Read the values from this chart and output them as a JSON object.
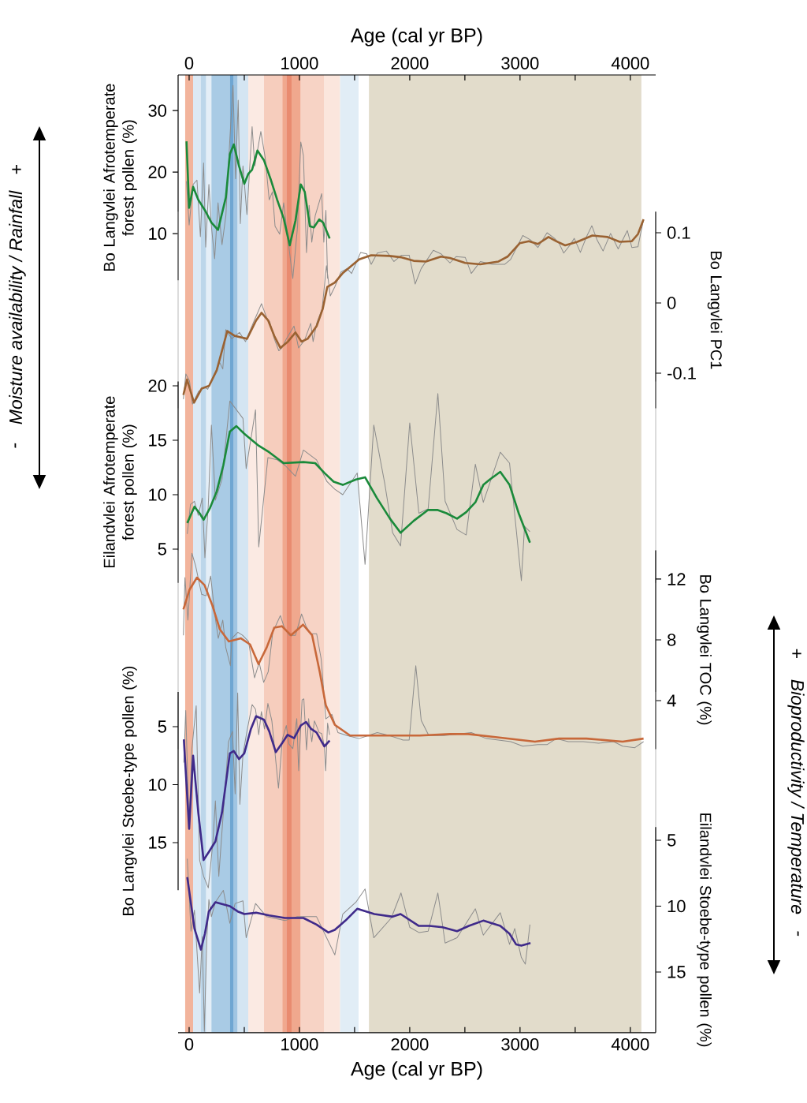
{
  "chart_data": [
    {
      "type": "line",
      "xlabel": "Age (cal yr BP)",
      "ylabel": "Bo Langvlei Afrotemperate forest pollen (%)",
      "xlim": [
        -100,
        4230
      ],
      "xticks": [
        0,
        {
          "value": 500,
          "label": null
        },
        1000,
        {
          "value": 1500,
          "label": null
        },
        2000,
        {
          "value": 2500,
          "label": null
        },
        3000,
        {
          "value": 3500,
          "label": null
        },
        4000
      ],
      "ylim": [
        2.4,
        35.8
      ],
      "yticks": [
        10,
        20,
        30
      ],
      "annotations": [
        "-",
        "Moisture availability / Rainfall",
        "+"
      ],
      "bands": [
        {
          "axis": "x",
          "from": -36,
          "to": 36,
          "color": "#f2b49c"
        },
        {
          "axis": "x",
          "from": 36,
          "to": 107,
          "color": "#dce9f4"
        },
        {
          "axis": "x",
          "from": 107,
          "to": 155,
          "color": "#bcd6ea"
        },
        {
          "axis": "x",
          "from": 155,
          "to": 202,
          "color": "#e4eef7"
        },
        {
          "axis": "x",
          "from": 202,
          "to": 369,
          "color": "#a9cbe5"
        },
        {
          "axis": "x",
          "from": 369,
          "to": 405,
          "color": "#6fa6d2"
        },
        {
          "axis": "x",
          "from": 405,
          "to": 440,
          "color": "#a0c5e2"
        },
        {
          "axis": "x",
          "from": 440,
          "to": 536,
          "color": "#d4e5f2"
        },
        {
          "axis": "x",
          "from": 536,
          "to": 679,
          "color": "#fbeae3"
        },
        {
          "axis": "x",
          "from": 679,
          "to": 845,
          "color": "#f6cdbd"
        },
        {
          "axis": "x",
          "from": 845,
          "to": 881,
          "color": "#f0a88e"
        },
        {
          "axis": "x",
          "from": 881,
          "to": 929,
          "color": "#e98b70"
        },
        {
          "axis": "x",
          "from": 929,
          "to": 1012,
          "color": "#f0a88e"
        },
        {
          "axis": "x",
          "from": 1012,
          "to": 1226,
          "color": "#f7d3c5"
        },
        {
          "axis": "x",
          "from": 1226,
          "to": 1369,
          "color": "#fbe6dd"
        },
        {
          "axis": "x",
          "from": 1369,
          "to": 1536,
          "color": "#e1edf6"
        },
        {
          "axis": "x",
          "from": 1630,
          "to": 4100,
          "color": "#e2dccb"
        }
      ],
      "series": [
        {
          "color": "#8c8c8c",
          "x": [
            -24,
            0,
            36,
            71,
            102,
            131,
            150,
            179,
            202,
            231,
            262,
            298,
            333,
            369,
            398,
            421,
            445,
            464,
            488,
            524,
            571,
            595,
            650,
            690,
            726,
            755,
            779,
            821,
            857,
            893,
            940,
            983,
            1012,
            1036,
            1064,
            1088,
            1112,
            1143,
            1202,
            1221,
            1240,
            1255
          ],
          "values": [
            18.5,
            11.4,
            18.0,
            18.7,
            9.5,
            21.5,
            7.8,
            18.0,
            11.2,
            5.9,
            15.0,
            8.2,
            12.9,
            25.3,
            34.1,
            18.9,
            31.7,
            11.6,
            21.0,
            13.1,
            27.4,
            21.0,
            26.6,
            22.3,
            15.5,
            16.8,
            11.2,
            9.9,
            15.0,
            9.5,
            2.7,
            11.2,
            24.9,
            22.7,
            6.9,
            14.6,
            8.6,
            12.9,
            16.5,
            8.6,
            13.8,
            2.7
          ]
        },
        {
          "color": "#1a8a3a",
          "x": [
            -24,
            0,
            36,
            83,
            143,
            202,
            262,
            333,
            369,
            405,
            452,
            500,
            536,
            571,
            619,
            679,
            738,
            798,
            857,
            912,
            964,
            1012,
            1048,
            1095,
            1131,
            1179,
            1214,
            1274
          ],
          "values": [
            25.0,
            14.2,
            17.6,
            15.5,
            13.8,
            11.8,
            10.6,
            15.9,
            22.9,
            24.5,
            21.0,
            18.1,
            19.7,
            20.4,
            23.5,
            21.9,
            18.9,
            15.5,
            12.5,
            8.1,
            12.1,
            18.0,
            16.8,
            11.2,
            11.0,
            12.3,
            11.8,
            9.2
          ]
        }
      ]
    },
    {
      "type": "line",
      "ylabel": "Bo Langvlei PC1",
      "tick_labels": "y",
      "xlim": [
        -100,
        4230
      ],
      "ylim": [
        -0.15,
        0.13
      ],
      "yticks": [
        -0.1,
        0,
        0.1
      ],
      "series": [
        {
          "color": "#8c8c8c",
          "x": [
            -52,
            -30,
            3,
            30,
            85,
            140,
            168,
            223,
            278,
            305,
            332,
            387,
            456,
            511,
            580,
            656,
            703,
            731,
            772,
            813,
            841,
            882,
            951,
            992,
            1047,
            1102,
            1124,
            1156,
            1206,
            1245,
            1280,
            1321,
            1376,
            1431,
            1473,
            1555,
            1610,
            1651,
            1706,
            1788,
            1857,
            1926,
            1995,
            2049,
            2104,
            2214,
            2283,
            2365,
            2420,
            2503,
            2558,
            2640,
            2750,
            2860,
            2915,
            3025,
            3093,
            3162,
            3245,
            3313,
            3354,
            3396,
            3451,
            3492,
            3547,
            3602,
            3651,
            3698,
            3753,
            3821,
            3890,
            3973,
            4014,
            4069,
            4120
          ],
          "values": [
            -0.137,
            -0.101,
            -0.111,
            -0.144,
            -0.126,
            -0.12,
            -0.123,
            -0.103,
            -0.085,
            -0.094,
            -0.038,
            -0.051,
            -0.042,
            -0.055,
            -0.029,
            -0.001,
            -0.021,
            -0.027,
            -0.051,
            -0.068,
            -0.064,
            -0.051,
            -0.033,
            -0.064,
            -0.053,
            -0.029,
            -0.055,
            -0.029,
            -0.008,
            0.053,
            0.01,
            0.023,
            0.044,
            0.049,
            0.042,
            0.072,
            0.07,
            0.055,
            0.071,
            0.074,
            0.059,
            0.068,
            0.068,
            0.027,
            0.049,
            0.075,
            0.07,
            0.057,
            0.066,
            0.065,
            0.042,
            0.059,
            0.055,
            0.055,
            0.062,
            0.096,
            0.09,
            0.079,
            0.1,
            0.092,
            0.085,
            0.071,
            0.082,
            0.092,
            0.072,
            0.094,
            0.11,
            0.09,
            0.074,
            0.099,
            0.077,
            0.103,
            0.079,
            0.08,
            0.119
          ]
        },
        {
          "color": "#9a6232",
          "x": [
            -52,
            -19,
            44,
            113,
            181,
            250,
            305,
            346,
            415,
            525,
            607,
            656,
            717,
            772,
            827,
            896,
            964,
            1019,
            1074,
            1156,
            1212,
            1253,
            1321,
            1390,
            1473,
            1541,
            1651,
            1816,
            1926,
            2036,
            2146,
            2283,
            2365,
            2503,
            2640,
            2805,
            2887,
            2997,
            3080,
            3162,
            3258,
            3327,
            3409,
            3519,
            3656,
            3794,
            3904,
            4014,
            4069,
            4120
          ],
          "values": [
            -0.131,
            -0.109,
            -0.142,
            -0.122,
            -0.118,
            -0.096,
            -0.064,
            -0.04,
            -0.047,
            -0.051,
            -0.025,
            -0.014,
            -0.025,
            -0.047,
            -0.064,
            -0.055,
            -0.042,
            -0.055,
            -0.051,
            -0.033,
            -0.008,
            0.023,
            0.029,
            0.042,
            0.053,
            0.062,
            0.068,
            0.067,
            0.065,
            0.06,
            0.059,
            0.066,
            0.064,
            0.057,
            0.055,
            0.059,
            0.066,
            0.085,
            0.088,
            0.084,
            0.094,
            0.088,
            0.082,
            0.087,
            0.096,
            0.094,
            0.087,
            0.088,
            0.098,
            0.119
          ]
        }
      ]
    },
    {
      "type": "line",
      "ylabel": "Eilandvlei Afrotemperate forest pollen (%)",
      "tick_labels": "y",
      "xlim": [
        -100,
        4230
      ],
      "ylim": [
        1.9,
        20.4
      ],
      "yticks": [
        5,
        10,
        15,
        20
      ],
      "series": [
        {
          "color": "#8c8c8c",
          "x": [
            -17,
            12,
            48,
            83,
            119,
            143,
            174,
            202,
            238,
            298,
            369,
            429,
            488,
            517,
            602,
            631,
            714,
            798,
            869,
            964,
            1036,
            1155,
            1250,
            1321,
            1393,
            1524,
            1595,
            1674,
            1774,
            1845,
            1917,
            2000,
            2083,
            2167,
            2255,
            2321,
            2429,
            2512,
            2595,
            2667,
            2821,
            2905,
            3012,
            3041,
            3090
          ],
          "values": [
            6.4,
            9.1,
            9.4,
            8.1,
            9.7,
            4.2,
            9.1,
            16.4,
            9.5,
            11.4,
            18.6,
            17.8,
            17.0,
            12.4,
            17.8,
            5.2,
            13.4,
            13.2,
            12.7,
            11.7,
            14.1,
            13.2,
            11.2,
            10.5,
            10.0,
            12.0,
            3.6,
            16.4,
            11.0,
            6.5,
            5.3,
            16.6,
            8.3,
            8.7,
            19.3,
            9.4,
            6.8,
            6.3,
            12.8,
            9.3,
            13.9,
            12.9,
            2.1,
            7.1,
            6.6
          ]
        },
        {
          "color": "#1a8a3a",
          "x": [
            -17,
            48,
            95,
            131,
            190,
            250,
            310,
            369,
            429,
            500,
            560,
            631,
            726,
            857,
            1036,
            1143,
            1226,
            1310,
            1393,
            1512,
            1595,
            1702,
            1821,
            1917,
            2036,
            2167,
            2250,
            2333,
            2429,
            2512,
            2595,
            2667,
            2726,
            2821,
            2905,
            2988,
            3090
          ],
          "values": [
            7.4,
            8.9,
            8.3,
            7.7,
            8.8,
            10.3,
            12.7,
            15.8,
            16.3,
            15.6,
            15.1,
            14.5,
            13.9,
            12.9,
            13.0,
            12.9,
            12.0,
            11.2,
            10.9,
            11.4,
            11.6,
            9.7,
            7.8,
            6.5,
            7.6,
            8.6,
            8.6,
            8.3,
            7.8,
            8.4,
            9.3,
            10.9,
            11.4,
            12.1,
            10.9,
            8.3,
            5.6
          ]
        }
      ]
    },
    {
      "type": "line",
      "ylabel": "Bo Langvlei TOC (%)",
      "tick_labels": "y",
      "xlim": [
        -100,
        4230
      ],
      "ylim": [
        0.8,
        13.9
      ],
      "yticks": [
        4,
        8,
        12
      ],
      "annotations": [
        "+",
        "Bioproductivity / Temperature",
        "-"
      ],
      "series": [
        {
          "color": "#8c8c8c",
          "x": [
            -52,
            -38,
            -11,
            25,
            58,
            113,
            154,
            195,
            236,
            264,
            305,
            332,
            374,
            387,
            442,
            484,
            538,
            593,
            635,
            676,
            717,
            758,
            827,
            868,
            909,
            964,
            1019,
            1060,
            1102,
            1156,
            1198,
            1239,
            1294,
            1349,
            1431,
            1541,
            1624,
            1706,
            1816,
            1940,
            1995,
            2055,
            2104,
            2173,
            2310,
            2448,
            2558,
            2695,
            2805,
            2915,
            3025,
            3162,
            3245,
            3327,
            3437,
            3574,
            3712,
            3849,
            3931,
            4041,
            4120
          ],
          "values": [
            8.3,
            12.1,
            9.3,
            13.7,
            12.9,
            11.0,
            10.9,
            12.2,
            9.5,
            8.1,
            9.3,
            7.5,
            6.3,
            8.1,
            8.5,
            8.3,
            7.9,
            5.5,
            6.5,
            5.2,
            5.9,
            8.5,
            9.6,
            8.7,
            8.3,
            8.3,
            9.7,
            8.9,
            8.4,
            8.4,
            6.7,
            2.8,
            3.1,
            1.9,
            1.7,
            1.5,
            1.7,
            1.9,
            1.7,
            1.4,
            1.4,
            6.3,
            2.7,
            1.7,
            1.7,
            1.8,
            1.9,
            1.5,
            1.4,
            1.3,
            1.0,
            1.1,
            1.1,
            1.5,
            1.3,
            1.3,
            1.2,
            1.3,
            1.0,
            0.9,
            1.3
          ]
        },
        {
          "color": "#c8683a",
          "x": [
            -52,
            3,
            71,
            140,
            209,
            278,
            360,
            470,
            552,
            629,
            703,
            772,
            841,
            923,
            1033,
            1115,
            1184,
            1239,
            1321,
            1459,
            1816,
            2091,
            2365,
            2530,
            2778,
            3135,
            3354,
            3602,
            3931,
            4120
          ],
          "values": [
            10.0,
            11.3,
            12.1,
            11.6,
            10.3,
            8.7,
            7.9,
            8.1,
            7.7,
            6.4,
            7.5,
            8.8,
            8.9,
            8.3,
            9.0,
            8.3,
            5.9,
            3.7,
            2.4,
            1.7,
            1.7,
            1.7,
            1.8,
            1.8,
            1.6,
            1.3,
            1.5,
            1.5,
            1.3,
            1.5
          ]
        }
      ]
    },
    {
      "type": "line",
      "ylabel": "Bo Langvlei Stoebe-type pollen (%)",
      "tick_labels": "y",
      "xlim": [
        -100,
        4230
      ],
      "ylim": [
        19.1,
        2.0
      ],
      "yticks": [
        5,
        10,
        15
      ],
      "series": [
        {
          "color": "#8c8c8c",
          "x": [
            -48,
            -31,
            0,
            24,
            64,
            95,
            131,
            174,
            214,
            238,
            269,
            310,
            357,
            393,
            417,
            440,
            460,
            488,
            524,
            571,
            602,
            631,
            655,
            683,
            714,
            750,
            810,
            845,
            881,
            905,
            940,
            976,
            993,
            1024,
            1040,
            1064,
            1083,
            1112,
            1136,
            1179,
            1202,
            1226,
            1238,
            1255,
            1274
          ],
          "values": [
            8.1,
            3.6,
            13.8,
            7.0,
            3.2,
            16.5,
            17.9,
            18.9,
            15.1,
            11.4,
            17.9,
            12.4,
            6.3,
            5.4,
            10.8,
            2.1,
            11.7,
            7.4,
            5.4,
            3.1,
            3.5,
            5.7,
            3.7,
            5.2,
            3.0,
            4.5,
            10.3,
            6.1,
            4.9,
            6.5,
            6.9,
            4.3,
            8.8,
            2.7,
            2.6,
            7.0,
            4.3,
            6.3,
            4.5,
            5.5,
            5.6,
            6.7,
            8.8,
            4.7,
            5.7
          ]
        },
        {
          "color": "#3f2a8a",
          "x": [
            -48,
            0,
            36,
            83,
            131,
            179,
            238,
            298,
            369,
            405,
            452,
            500,
            560,
            607,
            679,
            726,
            786,
            845,
            893,
            952,
            1012,
            1060,
            1107,
            1155,
            1190,
            1226,
            1274
          ],
          "values": [
            6.1,
            13.8,
            7.5,
            12.4,
            16.5,
            15.8,
            14.9,
            12.4,
            7.3,
            7.1,
            7.8,
            7.3,
            5.2,
            4.1,
            4.4,
            5.4,
            7.2,
            6.4,
            5.7,
            6.0,
            4.9,
            4.6,
            5.2,
            5.5,
            6.1,
            6.7,
            6.2
          ]
        }
      ]
    },
    {
      "type": "line",
      "xlabel": "Age (cal yr BP)",
      "ylabel": "Eilandvlei Stoebe-type pollen (%)",
      "xlim": [
        -100,
        4230
      ],
      "xticks": [
        0,
        {
          "value": 500,
          "label": null
        },
        1000,
        {
          "value": 1500,
          "label": null
        },
        2000,
        {
          "value": 2500,
          "label": null
        },
        3000,
        {
          "value": 3500,
          "label": null
        },
        4000
      ],
      "ylim": [
        19.6,
        4.0
      ],
      "yticks": [
        5,
        10,
        15
      ],
      "series": [
        {
          "color": "#8c8c8c",
          "x": [
            -17,
            17,
            48,
            95,
            119,
            138,
            160,
            179,
            202,
            238,
            310,
            369,
            417,
            488,
            517,
            602,
            702,
            869,
            976,
            1155,
            1321,
            1393,
            1512,
            1595,
            1674,
            1833,
            1921,
            2000,
            2083,
            2167,
            2255,
            2321,
            2429,
            2595,
            2667,
            2821,
            2905,
            2952,
            3012,
            3048,
            3090
          ],
          "values": [
            6.4,
            11.9,
            10.3,
            16.6,
            12.3,
            19.5,
            12.5,
            9.5,
            10.8,
            9.7,
            8.8,
            11.3,
            9.8,
            9.6,
            12.4,
            9.8,
            10.8,
            11.1,
            10.8,
            10.8,
            13.7,
            10.6,
            9.7,
            8.7,
            12.4,
            10.9,
            9.0,
            11.6,
            12.0,
            11.9,
            9.0,
            12.8,
            12.4,
            10.2,
            12.2,
            10.5,
            12.9,
            11.7,
            13.9,
            14.4,
            11.4
          ]
        },
        {
          "color": "#3f2a8a",
          "x": [
            -17,
            48,
            107,
            143,
            179,
            238,
            369,
            440,
            500,
            607,
            726,
            869,
            1036,
            1155,
            1262,
            1321,
            1417,
            1524,
            1679,
            1845,
            1917,
            2083,
            2179,
            2298,
            2429,
            2536,
            2667,
            2821,
            2905,
            2964,
            3012,
            3095
          ],
          "values": [
            7.8,
            11.7,
            13.3,
            12.1,
            10.4,
            9.7,
            10.0,
            10.4,
            10.6,
            10.5,
            10.7,
            10.9,
            10.9,
            11.4,
            12.0,
            11.8,
            11.1,
            10.2,
            10.6,
            10.8,
            10.6,
            11.5,
            11.5,
            11.6,
            11.9,
            11.5,
            11.1,
            11.5,
            12.1,
            12.9,
            13.0,
            12.8
          ]
        }
      ]
    }
  ]
}
